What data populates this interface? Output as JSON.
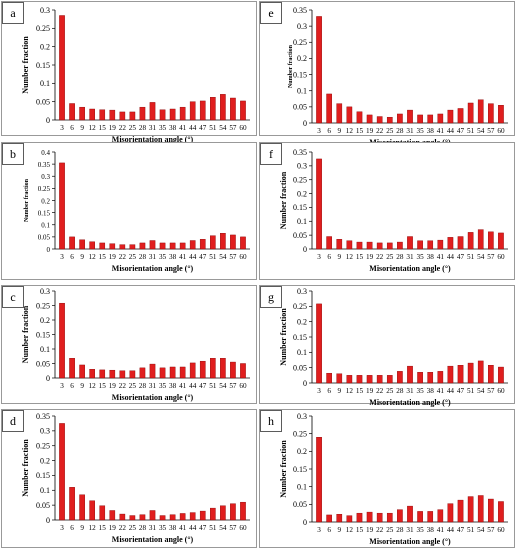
{
  "figure": {
    "xlabel": "Misorientation angle (°)",
    "ylabel": "Number fraction",
    "categories": [
      "3",
      "6",
      "9",
      "12",
      "15",
      "19",
      "22",
      "25",
      "28",
      "31",
      "35",
      "38",
      "41",
      "44",
      "47",
      "51",
      "54",
      "57",
      "60"
    ],
    "bar_color": "#e01e1e"
  },
  "chart_data": [
    {
      "type": "bar",
      "panel": "a",
      "ylim": [
        0,
        0.3
      ],
      "yticks": [
        0,
        0.05,
        0.1,
        0.15,
        0.2,
        0.25,
        0.3
      ],
      "values": [
        0.285,
        0.045,
        0.035,
        0.03,
        0.028,
        0.027,
        0.022,
        0.022,
        0.035,
        0.048,
        0.028,
        0.03,
        0.035,
        0.05,
        0.052,
        0.062,
        0.07,
        0.06,
        0.052
      ]
    },
    {
      "type": "bar",
      "panel": "b",
      "ylim": [
        0,
        0.4
      ],
      "yticks": [
        0,
        0.05,
        0.1,
        0.15,
        0.2,
        0.25,
        0.3,
        0.35,
        0.4
      ],
      "values": [
        0.355,
        0.05,
        0.038,
        0.03,
        0.025,
        0.022,
        0.018,
        0.018,
        0.025,
        0.035,
        0.025,
        0.025,
        0.025,
        0.035,
        0.04,
        0.055,
        0.065,
        0.058,
        0.05
      ]
    },
    {
      "type": "bar",
      "panel": "c",
      "ylim": [
        0,
        0.3
      ],
      "yticks": [
        0,
        0.05,
        0.1,
        0.15,
        0.2,
        0.25,
        0.3
      ],
      "values": [
        0.258,
        0.068,
        0.045,
        0.03,
        0.028,
        0.027,
        0.025,
        0.025,
        0.035,
        0.048,
        0.035,
        0.038,
        0.038,
        0.052,
        0.058,
        0.068,
        0.068,
        0.055,
        0.05
      ]
    },
    {
      "type": "bar",
      "panel": "d",
      "ylim": [
        0,
        0.35
      ],
      "yticks": [
        0,
        0.05,
        0.1,
        0.15,
        0.2,
        0.25,
        0.3,
        0.35
      ],
      "values": [
        0.325,
        0.11,
        0.085,
        0.065,
        0.048,
        0.032,
        0.02,
        0.015,
        0.018,
        0.032,
        0.015,
        0.018,
        0.022,
        0.025,
        0.03,
        0.04,
        0.048,
        0.055,
        0.06
      ]
    },
    {
      "type": "bar",
      "panel": "e",
      "ylim": [
        0,
        0.35
      ],
      "yticks": [
        0,
        0.05,
        0.1,
        0.15,
        0.2,
        0.25,
        0.3,
        0.35
      ],
      "values": [
        0.33,
        0.09,
        0.06,
        0.05,
        0.035,
        0.025,
        0.02,
        0.018,
        0.028,
        0.04,
        0.025,
        0.025,
        0.028,
        0.04,
        0.045,
        0.062,
        0.072,
        0.06,
        0.055
      ]
    },
    {
      "type": "bar",
      "panel": "f",
      "ylim": [
        0,
        0.35
      ],
      "yticks": [
        0,
        0.05,
        0.1,
        0.15,
        0.2,
        0.25,
        0.3,
        0.35
      ],
      "values": [
        0.325,
        0.045,
        0.035,
        0.03,
        0.025,
        0.025,
        0.022,
        0.022,
        0.025,
        0.045,
        0.03,
        0.03,
        0.032,
        0.042,
        0.045,
        0.06,
        0.07,
        0.062,
        0.058
      ]
    },
    {
      "type": "bar",
      "panel": "g",
      "ylim": [
        0,
        0.3
      ],
      "yticks": [
        0,
        0.05,
        0.1,
        0.15,
        0.2,
        0.25,
        0.3
      ],
      "values": [
        0.258,
        0.032,
        0.03,
        0.025,
        0.025,
        0.025,
        0.025,
        0.025,
        0.038,
        0.055,
        0.035,
        0.035,
        0.038,
        0.055,
        0.058,
        0.065,
        0.072,
        0.058,
        0.052
      ]
    },
    {
      "type": "bar",
      "panel": "h",
      "ylim": [
        0,
        0.3
      ],
      "yticks": [
        0,
        0.05,
        0.1,
        0.15,
        0.2,
        0.25,
        0.3
      ],
      "values": [
        0.24,
        0.02,
        0.022,
        0.018,
        0.025,
        0.028,
        0.025,
        0.025,
        0.035,
        0.045,
        0.03,
        0.03,
        0.035,
        0.052,
        0.062,
        0.072,
        0.075,
        0.065,
        0.058
      ]
    }
  ]
}
